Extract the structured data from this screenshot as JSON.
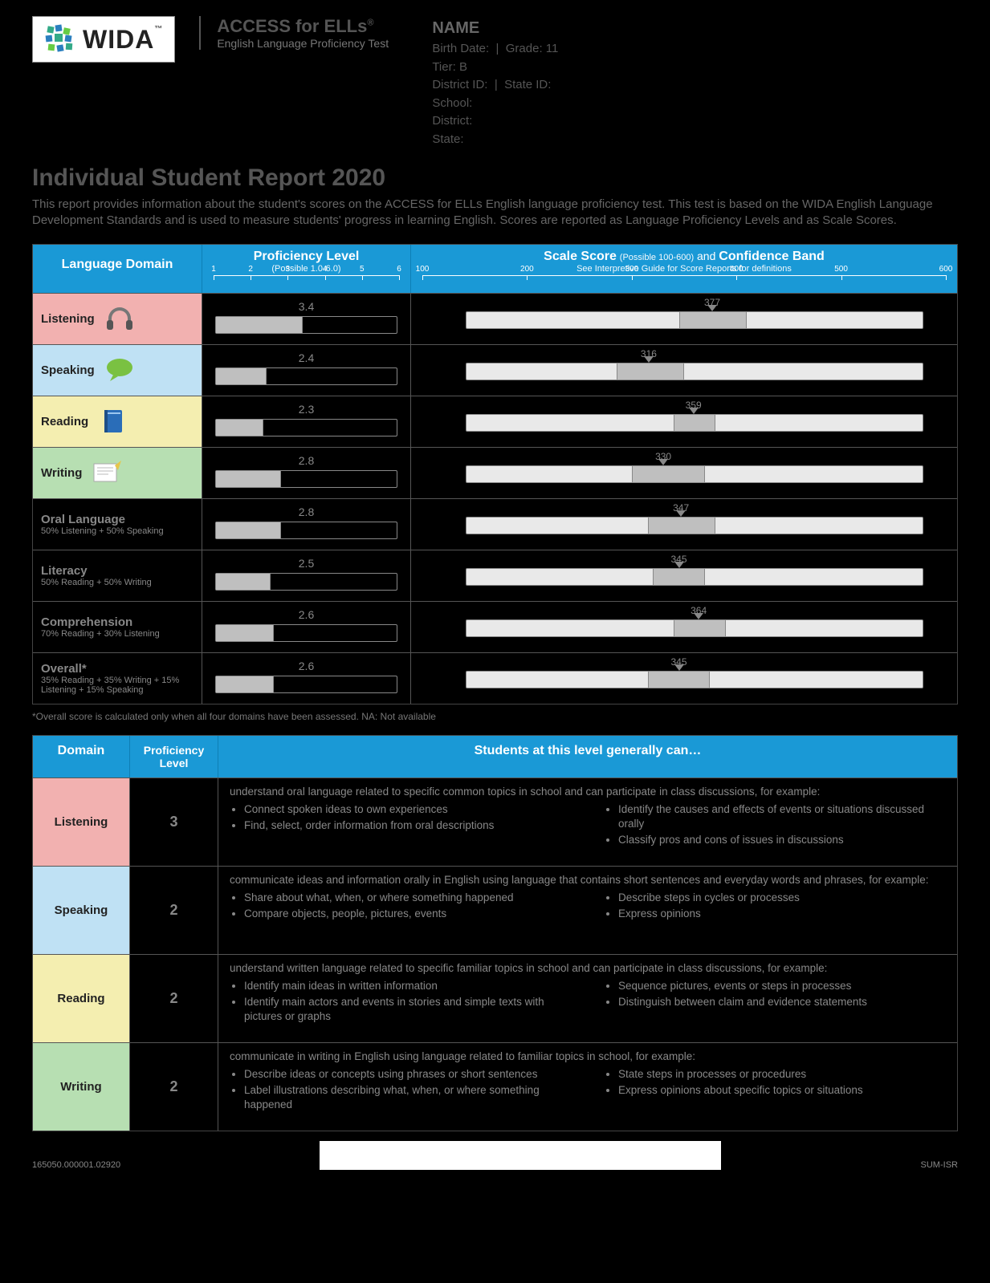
{
  "brand": {
    "name": "WIDA",
    "tm": "™"
  },
  "test": {
    "title": "ACCESS for ELLs",
    "subtitle": "English Language Proficiency Test"
  },
  "student": {
    "name_label": "NAME",
    "birth_label": "Birth Date:",
    "grade_label": "Grade:",
    "grade": "11",
    "tier_label": "Tier:",
    "tier": "B",
    "district_id_label": "District ID:",
    "state_id_label": "State ID:",
    "school_label": "School:",
    "district_label": "District:",
    "state_label": "State:"
  },
  "report_title": "Individual Student Report 2020",
  "intro": "This report provides information about the student's scores on the ACCESS for ELLs English language proficiency test. This test is based on the WIDA English Language Development Standards and is used to measure students' progress in learning English. Scores are reported as Language Proficiency Levels and as Scale Scores.",
  "scores_header": {
    "domain": "Language Domain",
    "prof": "Proficiency Level",
    "prof_sub": "(Possible 1.0-6.0)",
    "scale": "Scale Score",
    "scale_sub1": "(Possible 100-600)",
    "scale_and": "and",
    "scale_conf": "Confidence Band",
    "scale_sub2": "See Interpretive Guide for Score Reports for definitions"
  },
  "prof_axis": {
    "min": 1,
    "max": 6,
    "ticks": [
      1,
      2,
      3,
      4,
      5,
      6
    ]
  },
  "scale_axis": {
    "min": 100,
    "max": 600,
    "ticks": [
      100,
      200,
      300,
      400,
      500,
      600
    ],
    "bar_start": 140,
    "bar_end": 580
  },
  "colors": {
    "listening": "#f2b1b0",
    "speaking": "#bfe1f4",
    "reading": "#f4eeb0",
    "writing": "#b7dfb2",
    "header_bg": "#1a99d6",
    "bar_fill": "#bfbfbf",
    "bar_track": "#e9e9e9"
  },
  "domains": [
    {
      "key": "listening",
      "label": "Listening",
      "colored": true,
      "icon": "headphones",
      "prof": 3.4,
      "scale": 377,
      "conf_lo": 345,
      "conf_hi": 410
    },
    {
      "key": "speaking",
      "label": "Speaking",
      "colored": true,
      "icon": "speech",
      "prof": 2.4,
      "scale": 316,
      "conf_lo": 285,
      "conf_hi": 350
    },
    {
      "key": "reading",
      "label": "Reading",
      "colored": true,
      "icon": "book",
      "prof": 2.3,
      "scale": 359,
      "conf_lo": 340,
      "conf_hi": 380
    },
    {
      "key": "writing",
      "label": "Writing",
      "colored": true,
      "icon": "paper",
      "prof": 2.8,
      "scale": 330,
      "conf_lo": 300,
      "conf_hi": 370
    },
    {
      "key": "oral",
      "label": "Oral Language",
      "formula": "50% Listening + 50% Speaking",
      "prof": 2.8,
      "scale": 347,
      "conf_lo": 315,
      "conf_hi": 380
    },
    {
      "key": "literacy",
      "label": "Literacy",
      "formula": "50% Reading + 50% Writing",
      "prof": 2.5,
      "scale": 345,
      "conf_lo": 320,
      "conf_hi": 370
    },
    {
      "key": "comprehension",
      "label": "Comprehension",
      "formula": "70% Reading + 30% Listening",
      "prof": 2.6,
      "scale": 364,
      "conf_lo": 340,
      "conf_hi": 390
    },
    {
      "key": "overall",
      "label": "Overall*",
      "formula": "35% Reading + 35% Writing + 15% Listening + 15% Speaking",
      "prof": 2.6,
      "scale": 345,
      "conf_lo": 315,
      "conf_hi": 375
    }
  ],
  "overall_footnote": "*Overall score is calculated only when all four domains have been assessed.  NA: Not available",
  "desc_header": {
    "domain": "Domain",
    "level": "Proficiency Level",
    "text": "Students at this level generally can…"
  },
  "descriptors": [
    {
      "domain": "Listening",
      "color": "listening",
      "level": "3",
      "intro": "understand oral language related to specific common topics in school and can participate in class discussions, for example:",
      "left": [
        "Connect spoken ideas to own experiences",
        "Find, select, order information from oral descriptions"
      ],
      "right": [
        "Identify the causes and effects of events or situations discussed orally",
        "Classify pros and cons of issues in discussions"
      ]
    },
    {
      "domain": "Speaking",
      "color": "speaking",
      "level": "2",
      "intro": "communicate ideas and information orally in English using language that contains short sentences and everyday words and phrases, for example:",
      "left": [
        "Share about what, when, or where something happened",
        "Compare objects, people, pictures, events"
      ],
      "right": [
        "Describe steps in cycles or processes",
        "Express opinions"
      ]
    },
    {
      "domain": "Reading",
      "color": "reading",
      "level": "2",
      "intro": "understand written language related to specific familiar topics in school and can participate in class discussions, for example:",
      "left": [
        "Identify main ideas in written information",
        "Identify main actors and events in stories and simple texts with pictures or graphs"
      ],
      "right": [
        "Sequence pictures, events or steps in processes",
        "Distinguish between claim and evidence statements"
      ]
    },
    {
      "domain": "Writing",
      "color": "writing",
      "level": "2",
      "intro": "communicate in writing in English using language related to familiar topics in school, for example:",
      "left": [
        "Describe ideas or concepts using phrases or short sentences",
        "Label illustrations describing what, when, or where something happened"
      ],
      "right": [
        "State steps in processes or procedures",
        "Express opinions about specific topics or situations"
      ]
    }
  ],
  "footer": {
    "left_code": "165050.000001.02920",
    "right_code": "SUM-ISR"
  }
}
